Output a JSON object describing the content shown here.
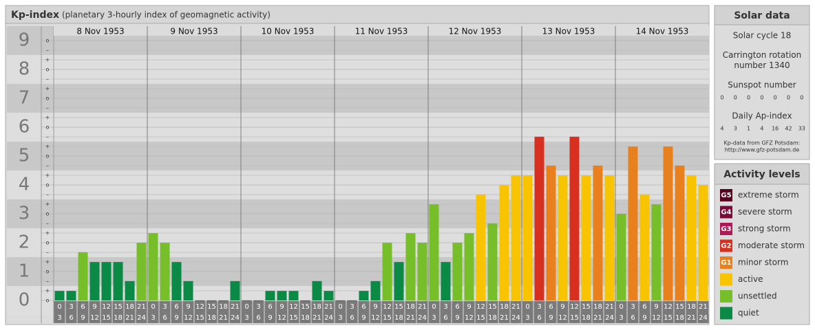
{
  "chart_data": {
    "type": "bar",
    "title": "Kp-index",
    "subtitle": "(planetary 3-hourly index of geomagnetic activity)",
    "days": [
      "8 Nov 1953",
      "9 Nov 1953",
      "10 Nov 1953",
      "11 Nov 1953",
      "12 Nov 1953",
      "13 Nov 1953",
      "14 Nov 1953"
    ],
    "hours_start": [
      "0",
      "3",
      "6",
      "9",
      "12",
      "15",
      "18",
      "21"
    ],
    "hours_end": [
      "3",
      "6",
      "9",
      "12",
      "15",
      "18",
      "21",
      "24"
    ],
    "values": [
      0.33,
      0.33,
      1.67,
      1.33,
      1.33,
      1.33,
      0.67,
      2,
      2.33,
      2,
      1.33,
      0.67,
      0,
      0,
      0,
      0.67,
      0,
      0,
      0.33,
      0.33,
      0.33,
      0,
      0.67,
      0.33,
      0,
      0,
      0.33,
      0.67,
      2,
      1.33,
      2.33,
      2,
      3.33,
      1.33,
      2,
      2.33,
      3.67,
      2.67,
      4,
      4.33,
      4.33,
      5.67,
      4.67,
      4.33,
      5.67,
      4.33,
      4.67,
      4.33,
      3,
      5.33,
      3.67,
      3.33,
      5.33,
      4.67,
      4.33,
      4
    ],
    "colors": [
      "#0b8a46",
      "#0b8a46",
      "#76bf2b",
      "#0b8a46",
      "#0b8a46",
      "#0b8a46",
      "#0b8a46",
      "#76bf2b",
      "#76bf2b",
      "#76bf2b",
      "#0b8a46",
      "#0b8a46",
      "#0b8a46",
      "#0b8a46",
      "#0b8a46",
      "#0b8a46",
      "#0b8a46",
      "#0b8a46",
      "#0b8a46",
      "#0b8a46",
      "#0b8a46",
      "#0b8a46",
      "#0b8a46",
      "#0b8a46",
      "#0b8a46",
      "#0b8a46",
      "#0b8a46",
      "#0b8a46",
      "#76bf2b",
      "#0b8a46",
      "#76bf2b",
      "#76bf2b",
      "#76bf2b",
      "#0b8a46",
      "#76bf2b",
      "#76bf2b",
      "#f8c400",
      "#76bf2b",
      "#f8c400",
      "#f8c400",
      "#f8c400",
      "#d83020",
      "#e8801e",
      "#f8c400",
      "#d83020",
      "#f8c400",
      "#e8801e",
      "#f8c400",
      "#76bf2b",
      "#e8801e",
      "#f8c400",
      "#76bf2b",
      "#e8801e",
      "#e8801e",
      "#f8c400",
      "#f8c400"
    ],
    "ylim": [
      -0.5,
      9.5
    ],
    "yticks": [
      0,
      1,
      2,
      3,
      4,
      5,
      6,
      7,
      8,
      9
    ],
    "kp_suffixes": [
      "–",
      "o",
      "+"
    ]
  },
  "solar_data": {
    "title": "Solar data",
    "cycle": "Solar cycle 18",
    "rotation": "Carrington rotation number 1340",
    "sunspot_title": "Sunspot number",
    "sunspot": [
      0,
      0,
      0,
      0,
      0,
      0,
      0
    ],
    "ap_title": "Daily Ap-index",
    "ap": [
      4,
      3,
      1,
      4,
      16,
      42,
      33
    ],
    "source": "Kp-data from GFZ Potsdam:",
    "source_url": "http://www.gfz-potsdam.de"
  },
  "activity_levels": {
    "title": "Activity levels",
    "items": [
      {
        "badge": "G5",
        "label": "extreme storm",
        "color": "#5a0020"
      },
      {
        "badge": "G4",
        "label": "severe storm",
        "color": "#7a0a3a"
      },
      {
        "badge": "G3",
        "label": "strong storm",
        "color": "#b01858"
      },
      {
        "badge": "G2",
        "label": "moderate storm",
        "color": "#d83020"
      },
      {
        "badge": "G1",
        "label": "minor storm",
        "color": "#e8801e"
      },
      {
        "badge": null,
        "label": "active",
        "color": "#f8c400"
      },
      {
        "badge": null,
        "label": "unsettled",
        "color": "#76bf2b"
      },
      {
        "badge": null,
        "label": "quiet",
        "color": "#0b8a46"
      }
    ]
  }
}
